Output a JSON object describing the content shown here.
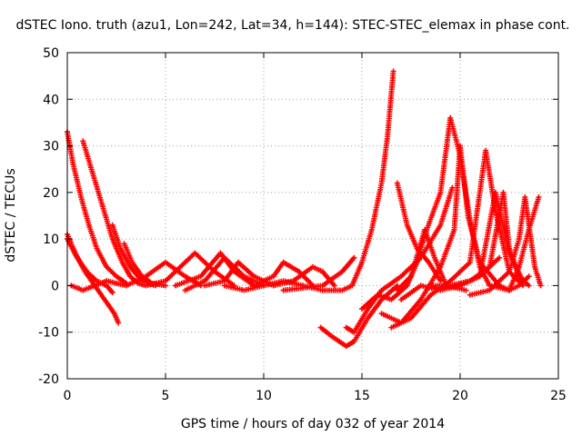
{
  "chart_data": {
    "type": "scatter",
    "title": "dSTEC Iono. truth (azu1, Lon=242, Lat=34, h=144): STEC-STEC_elemax in phase cont.",
    "xlabel": "GPS time / hours of day 032 of year 2014",
    "ylabel": "dSTEC  / TECUs",
    "xlim": [
      0,
      25
    ],
    "ylim": [
      -20,
      50
    ],
    "x_ticks": [
      "0",
      "5",
      "10",
      "15",
      "20",
      "25"
    ],
    "y_ticks": [
      "-20",
      "-10",
      "0",
      "10",
      "20",
      "30",
      "40",
      "50"
    ],
    "grid": true,
    "legend": "none",
    "marker": "plus",
    "color": "#ff0000",
    "series": [
      {
        "points": [
          [
            0.0,
            33
          ],
          [
            0.3,
            26
          ],
          [
            0.7,
            19
          ],
          [
            1.1,
            13
          ],
          [
            1.5,
            8
          ],
          [
            2.0,
            4
          ],
          [
            2.5,
            2
          ],
          [
            3.0,
            0.5
          ]
        ]
      },
      {
        "points": [
          [
            0.0,
            11
          ],
          [
            0.4,
            7
          ],
          [
            0.9,
            3
          ],
          [
            1.4,
            0
          ],
          [
            1.9,
            -3
          ],
          [
            2.4,
            -6
          ],
          [
            2.6,
            -8
          ]
        ]
      },
      {
        "points": [
          [
            0.0,
            10
          ],
          [
            0.5,
            6
          ],
          [
            1.0,
            3
          ],
          [
            1.5,
            1
          ],
          [
            2.0,
            0
          ],
          [
            2.3,
            -1.5
          ]
        ]
      },
      {
        "points": [
          [
            0.2,
            0
          ],
          [
            0.8,
            -1
          ],
          [
            1.4,
            0
          ],
          [
            2.0,
            1
          ],
          [
            2.5,
            0.5
          ],
          [
            3.0,
            0
          ]
        ]
      },
      {
        "points": [
          [
            0.8,
            31
          ],
          [
            1.3,
            24
          ],
          [
            1.8,
            17
          ],
          [
            2.3,
            10
          ],
          [
            2.8,
            5
          ],
          [
            3.2,
            2
          ],
          [
            3.6,
            0.5
          ],
          [
            4.0,
            0
          ]
        ]
      },
      {
        "points": [
          [
            2.3,
            13
          ],
          [
            2.7,
            8
          ],
          [
            3.2,
            4
          ],
          [
            3.8,
            1
          ],
          [
            4.5,
            0
          ]
        ]
      },
      {
        "points": [
          [
            2.9,
            9
          ],
          [
            3.3,
            5
          ],
          [
            3.8,
            2
          ],
          [
            4.3,
            0.5
          ],
          [
            5.0,
            0
          ]
        ]
      },
      {
        "points": [
          [
            3.0,
            0
          ],
          [
            4.0,
            2
          ],
          [
            5.0,
            5
          ],
          [
            6.0,
            2
          ],
          [
            6.8,
            0
          ]
        ]
      },
      {
        "points": [
          [
            4.0,
            0
          ],
          [
            5.0,
            1
          ],
          [
            6.5,
            7
          ],
          [
            7.5,
            3
          ],
          [
            8.5,
            0
          ]
        ]
      },
      {
        "points": [
          [
            5.5,
            0
          ],
          [
            6.8,
            2
          ],
          [
            7.8,
            7
          ],
          [
            8.5,
            3
          ],
          [
            9.5,
            0
          ]
        ]
      },
      {
        "points": [
          [
            6.0,
            -1
          ],
          [
            7.0,
            1
          ],
          [
            8.0,
            6
          ],
          [
            9.0,
            2
          ],
          [
            10.0,
            0
          ]
        ]
      },
      {
        "points": [
          [
            7.0,
            0
          ],
          [
            8.0,
            1
          ],
          [
            8.7,
            5
          ],
          [
            9.5,
            2
          ],
          [
            10.5,
            0
          ]
        ]
      },
      {
        "points": [
          [
            8.0,
            0
          ],
          [
            9.0,
            -1
          ],
          [
            10.0,
            0
          ],
          [
            11.0,
            1
          ],
          [
            12.0,
            0
          ]
        ]
      },
      {
        "points": [
          [
            9.5,
            0
          ],
          [
            10.5,
            2
          ],
          [
            11.0,
            5
          ],
          [
            11.8,
            3
          ],
          [
            12.5,
            0
          ]
        ]
      },
      {
        "points": [
          [
            10.5,
            0
          ],
          [
            11.5,
            1
          ],
          [
            12.5,
            4
          ],
          [
            13.0,
            3
          ],
          [
            13.6,
            0
          ]
        ]
      },
      {
        "points": [
          [
            11.0,
            -1
          ],
          [
            12.0,
            -0.5
          ],
          [
            13.0,
            0
          ],
          [
            14.0,
            3
          ],
          [
            14.6,
            6
          ]
        ]
      },
      {
        "points": [
          [
            12.0,
            0
          ],
          [
            13.0,
            -1
          ],
          [
            14.0,
            -1
          ],
          [
            14.5,
            0
          ],
          [
            15.0,
            5
          ],
          [
            15.5,
            12
          ],
          [
            16.0,
            22
          ],
          [
            16.3,
            32
          ],
          [
            16.6,
            46
          ]
        ]
      },
      {
        "points": [
          [
            12.9,
            -9
          ],
          [
            13.5,
            -11
          ],
          [
            14.2,
            -13
          ],
          [
            14.6,
            -12
          ],
          [
            15.3,
            -7
          ],
          [
            16.0,
            -3
          ],
          [
            16.8,
            0
          ]
        ]
      },
      {
        "points": [
          [
            14.2,
            -9
          ],
          [
            14.6,
            -10
          ],
          [
            15.3,
            -5
          ],
          [
            16.0,
            -1
          ],
          [
            17.0,
            2
          ],
          [
            18.0,
            6
          ],
          [
            19.0,
            13
          ],
          [
            19.6,
            21
          ]
        ]
      },
      {
        "points": [
          [
            15.0,
            -5
          ],
          [
            15.8,
            -2
          ],
          [
            16.5,
            -3
          ],
          [
            17.3,
            0
          ],
          [
            17.8,
            5
          ],
          [
            18.3,
            12
          ],
          [
            19.0,
            20
          ],
          [
            19.5,
            36
          ],
          [
            20.0,
            28
          ],
          [
            20.5,
            14
          ],
          [
            21.0,
            4
          ],
          [
            21.5,
            0
          ]
        ]
      },
      {
        "points": [
          [
            16.0,
            -6
          ],
          [
            17.0,
            -8
          ],
          [
            18.0,
            -3
          ],
          [
            19.0,
            4
          ],
          [
            19.7,
            12
          ],
          [
            20.0,
            30
          ],
          [
            20.4,
            15
          ],
          [
            21.0,
            5
          ],
          [
            22.0,
            0
          ]
        ]
      },
      {
        "points": [
          [
            16.5,
            -9
          ],
          [
            17.5,
            -7
          ],
          [
            18.5,
            -2
          ],
          [
            19.5,
            1
          ],
          [
            20.5,
            5
          ],
          [
            21.3,
            29
          ],
          [
            21.8,
            16
          ],
          [
            22.5,
            3
          ],
          [
            23.2,
            0
          ]
        ]
      },
      {
        "points": [
          [
            16.8,
            -1
          ],
          [
            17.5,
            2
          ],
          [
            18.2,
            12
          ],
          [
            18.7,
            6
          ],
          [
            19.3,
            0
          ],
          [
            20.3,
            -1
          ]
        ]
      },
      {
        "points": [
          [
            16.8,
            22
          ],
          [
            17.3,
            13
          ],
          [
            17.8,
            8
          ],
          [
            18.4,
            5
          ],
          [
            19.0,
            1
          ]
        ]
      },
      {
        "points": [
          [
            17.0,
            -3
          ],
          [
            18.0,
            0
          ],
          [
            19.0,
            -1
          ],
          [
            20.0,
            0
          ],
          [
            21.0,
            2
          ],
          [
            21.8,
            20
          ],
          [
            22.5,
            7
          ],
          [
            23.2,
            1
          ]
        ]
      },
      {
        "points": [
          [
            18.5,
            0
          ],
          [
            19.5,
            0
          ],
          [
            20.5,
            1
          ],
          [
            21.5,
            4
          ],
          [
            22.2,
            20
          ],
          [
            22.5,
            8
          ],
          [
            23.0,
            2
          ],
          [
            23.5,
            0
          ]
        ]
      },
      {
        "points": [
          [
            19.5,
            0
          ],
          [
            20.5,
            1
          ],
          [
            21.0,
            2
          ],
          [
            21.5,
            4
          ],
          [
            22.0,
            6
          ]
        ]
      },
      {
        "points": [
          [
            20.5,
            -2
          ],
          [
            21.5,
            -1
          ],
          [
            22.5,
            3
          ],
          [
            23.0,
            10
          ],
          [
            23.3,
            19
          ],
          [
            23.8,
            4
          ],
          [
            24.1,
            0
          ]
        ]
      },
      {
        "points": [
          [
            21.5,
            0
          ],
          [
            22.5,
            -1
          ],
          [
            23.0,
            4
          ],
          [
            23.5,
            12
          ],
          [
            24.0,
            19
          ]
        ]
      },
      {
        "points": [
          [
            22.0,
            0
          ],
          [
            22.5,
            -1
          ],
          [
            23.0,
            0
          ],
          [
            23.5,
            2
          ]
        ]
      }
    ]
  }
}
